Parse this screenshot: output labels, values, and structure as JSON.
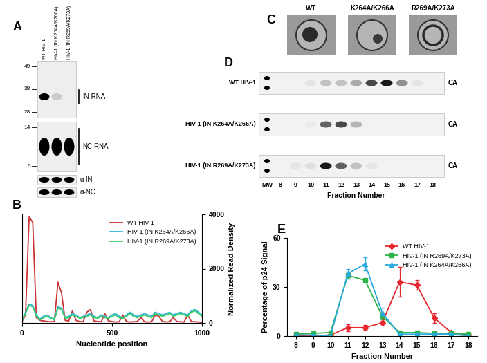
{
  "chart_data": [
    {
      "type": "line",
      "title": "B",
      "x": [
        0,
        20,
        40,
        60,
        80,
        100,
        120,
        140,
        160,
        180,
        200,
        220,
        240,
        260,
        280,
        300,
        320,
        340,
        360,
        380,
        400,
        420,
        440,
        460,
        480,
        500,
        520,
        540,
        560,
        580,
        600,
        620,
        640,
        660,
        680,
        700,
        720,
        740,
        760,
        780,
        800,
        820,
        840,
        860,
        880,
        900,
        920,
        940,
        960,
        980,
        1000
      ],
      "xlim": [
        0,
        1000
      ],
      "xticks": [
        0,
        500,
        1000
      ],
      "ylim": [
        0,
        4000
      ],
      "yticks": [
        0,
        2000,
        4000
      ],
      "x_label": "Nucleotide position",
      "y_label": "Normalized Read Density",
      "legend": "upper right",
      "series": [
        {
          "name": "WT HIV-1",
          "color": "#cc3333",
          "values": [
            50,
            300,
            3900,
            3700,
            200,
            100,
            80,
            60,
            50,
            60,
            1500,
            1100,
            100,
            80,
            450,
            100,
            60,
            50,
            400,
            500,
            80,
            60,
            50,
            350,
            80,
            60,
            40,
            50,
            300,
            60,
            40,
            50,
            60,
            200,
            50,
            40,
            50,
            300,
            250,
            60,
            40,
            50,
            200,
            60,
            50,
            40,
            300,
            60,
            50,
            40,
            30
          ]
        },
        {
          "name": "HIV-1 (IN K264A/K266A)",
          "color": "#33b5d9",
          "values": [
            100,
            400,
            700,
            650,
            300,
            150,
            250,
            300,
            200,
            150,
            600,
            550,
            200,
            250,
            350,
            300,
            200,
            250,
            300,
            350,
            250,
            200,
            300,
            250,
            200,
            300,
            350,
            250,
            200,
            300,
            400,
            300,
            250,
            300,
            350,
            300,
            250,
            400,
            350,
            300,
            350,
            400,
            300,
            350,
            400,
            350,
            300,
            450,
            500,
            400,
            300
          ]
        },
        {
          "name": "HIV-1 (IN R269A/K273A)",
          "color": "#33cc66",
          "values": [
            80,
            350,
            650,
            600,
            250,
            120,
            200,
            250,
            180,
            120,
            550,
            500,
            180,
            200,
            300,
            250,
            180,
            200,
            250,
            300,
            200,
            180,
            250,
            200,
            180,
            250,
            300,
            200,
            180,
            250,
            350,
            250,
            200,
            250,
            300,
            250,
            200,
            350,
            300,
            250,
            300,
            350,
            250,
            300,
            350,
            300,
            250,
            400,
            450,
            350,
            250
          ]
        }
      ]
    },
    {
      "type": "line",
      "title": "E",
      "x": [
        8,
        9,
        10,
        11,
        12,
        13,
        14,
        15,
        16,
        17,
        18
      ],
      "xlim": [
        7.5,
        18.5
      ],
      "xticks": [
        8,
        9,
        10,
        11,
        12,
        13,
        14,
        15,
        16,
        17,
        18
      ],
      "ylim": [
        0,
        60
      ],
      "yticks": [
        0,
        30,
        60
      ],
      "x_label": "Fraction Number",
      "y_label": "Percentage of p24 Signal",
      "legend": "upper right",
      "series": [
        {
          "name": "WT HIV-1",
          "color": "#e8262d",
          "marker": "diamond",
          "values": [
            0,
            0,
            0.5,
            5,
            5,
            8,
            33,
            31,
            11,
            2,
            0.5
          ],
          "errors": [
            0,
            0,
            0.5,
            2,
            1.5,
            1,
            9,
            3,
            3,
            1,
            0.5
          ]
        },
        {
          "name": "HIV-1 (IN R269A/K273A)",
          "color": "#2db34a",
          "marker": "square",
          "values": [
            1,
            1.5,
            2,
            37,
            34,
            12,
            2,
            2,
            1.5,
            1.5,
            1
          ],
          "errors": [
            0.5,
            0.5,
            0.5,
            2,
            1,
            2,
            0.5,
            0.5,
            0.5,
            0.5,
            0.5
          ]
        },
        {
          "name": "HIV-1 (IN K264A/K266A)",
          "color": "#29abe2",
          "marker": "triangle",
          "values": [
            0.5,
            0.5,
            0,
            38,
            44,
            14,
            1,
            1,
            1,
            1,
            0
          ],
          "errors": [
            0.3,
            0.3,
            0.3,
            3,
            4,
            3,
            0.3,
            0.3,
            0.3,
            0.3,
            0.3
          ]
        }
      ]
    }
  ],
  "blot_A": {
    "panel": "A",
    "lanes": [
      "WT HIV-1",
      "HIV-1 (IN K264A/K266A)",
      "HIV-1 (IN R269A/K273A)"
    ],
    "blots": [
      {
        "label": "IN-RNA",
        "markers": [
          49,
          38,
          28
        ],
        "intensity": [
          100,
          15,
          0
        ]
      },
      {
        "label": "NC-RNA",
        "markers": [
          14,
          6
        ],
        "intensity": [
          100,
          100,
          100
        ]
      },
      {
        "label": "α-IN",
        "markers": [],
        "intensity": [
          100,
          100,
          100
        ]
      },
      {
        "label": "α-NC",
        "markers": [],
        "intensity": [
          100,
          100,
          100
        ]
      }
    ]
  },
  "micrographs_C": {
    "panel": "C",
    "labels": [
      "WT",
      "K264A/K266A",
      "R269A/K273A"
    ]
  },
  "gel_D": {
    "panel": "D",
    "marker_lane": "MW",
    "band_label": "CA",
    "axis_label": "Fraction Number",
    "fractions": [
      8,
      9,
      10,
      11,
      12,
      13,
      14,
      15,
      16,
      17,
      18
    ],
    "rows": [
      {
        "label": "WT HIV-1",
        "intensity": [
          0,
          0,
          5,
          20,
          20,
          30,
          70,
          90,
          40,
          5,
          0
        ]
      },
      {
        "label": "HIV-1 (IN K264A/K266A)",
        "intensity": [
          0,
          0,
          3,
          60,
          70,
          25,
          0,
          0,
          0,
          0,
          0
        ]
      },
      {
        "label": "HIV-1 (IN R269A/K273A)",
        "intensity": [
          0,
          5,
          8,
          90,
          60,
          20,
          5,
          0,
          0,
          0,
          0
        ]
      }
    ]
  }
}
